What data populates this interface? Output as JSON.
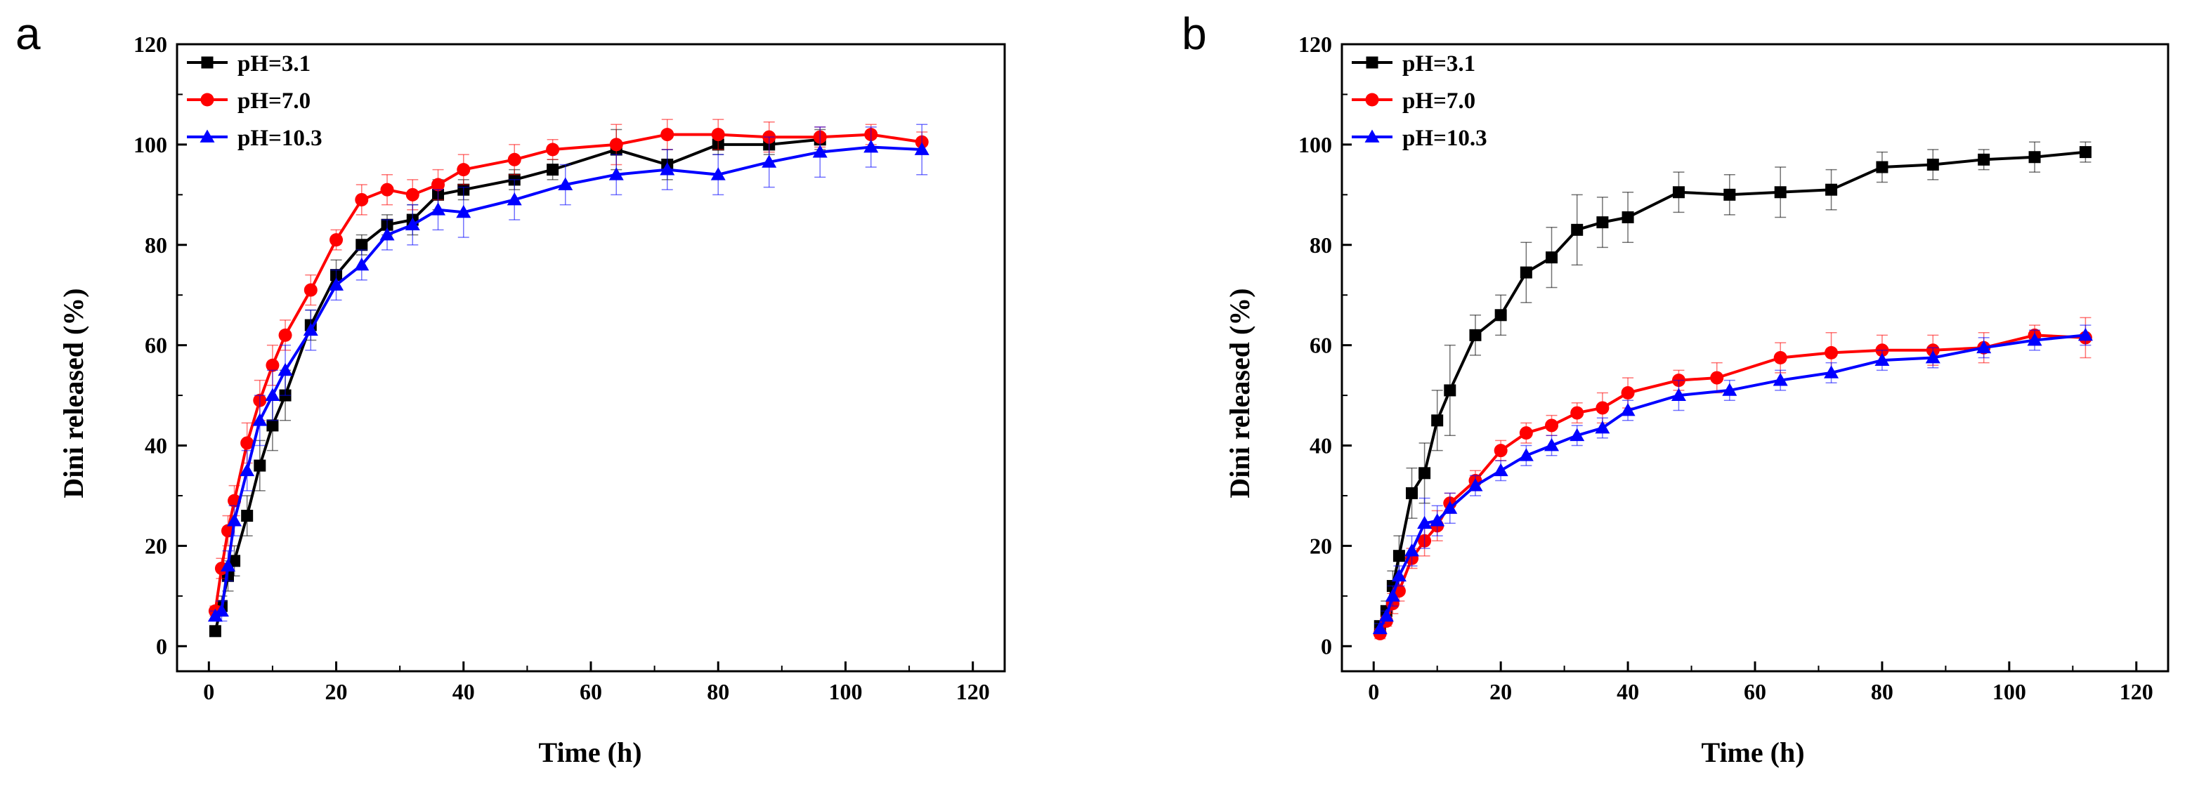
{
  "chart_data": [
    {
      "type": "line",
      "panel_label": "a",
      "xlabel": "Time (h)",
      "ylabel": "Dini  released (%)",
      "xlim": [
        -5,
        125
      ],
      "ylim": [
        -5,
        120
      ],
      "xticks": [
        0,
        20,
        40,
        60,
        80,
        100,
        120
      ],
      "yticks": [
        0,
        20,
        40,
        60,
        80,
        100,
        120
      ],
      "legend_position": "top-left",
      "series": [
        {
          "name": "pH=3.1",
          "color": "#000000",
          "marker": "square",
          "x": [
            1,
            2,
            3,
            4,
            6,
            8,
            10,
            12,
            16,
            20,
            24,
            28,
            32,
            36,
            40,
            48,
            54,
            64,
            72,
            80,
            88,
            96
          ],
          "y": [
            3,
            8,
            14,
            17,
            26,
            36,
            44,
            50,
            64,
            74,
            80,
            84,
            85,
            90,
            91,
            93,
            95,
            99,
            96,
            100,
            100,
            101
          ],
          "err": [
            1,
            2,
            3,
            3,
            4,
            5,
            5,
            5,
            3,
            3,
            2,
            2,
            3,
            3,
            2,
            2,
            2,
            4,
            3,
            2,
            2,
            2
          ]
        },
        {
          "name": "pH=7.0",
          "color": "#ff0000",
          "marker": "circle",
          "x": [
            1,
            2,
            3,
            4,
            6,
            8,
            10,
            12,
            16,
            20,
            24,
            28,
            32,
            36,
            40,
            48,
            54,
            64,
            72,
            80,
            88,
            96,
            104,
            112
          ],
          "y": [
            7,
            15.5,
            23,
            29,
            40.5,
            49,
            56,
            62,
            71,
            81,
            89,
            91,
            90,
            92,
            95,
            97,
            99,
            100,
            102,
            102,
            101.5,
            101.5,
            102,
            100.5
          ],
          "err": [
            1,
            2,
            3,
            3,
            4,
            4,
            4,
            3,
            3,
            2,
            3,
            3,
            3,
            3,
            3,
            3,
            2,
            4,
            3,
            3,
            3,
            2,
            2,
            2
          ]
        },
        {
          "name": "pH=10.3",
          "color": "#0000ff",
          "marker": "triangle",
          "x": [
            1,
            2,
            3,
            4,
            6,
            8,
            10,
            12,
            16,
            20,
            24,
            28,
            32,
            36,
            40,
            48,
            56,
            64,
            72,
            80,
            88,
            96,
            104,
            112
          ],
          "y": [
            6,
            7,
            16,
            25,
            35,
            45,
            50,
            55,
            63,
            72,
            76,
            82,
            84,
            87,
            86.5,
            89,
            92,
            94,
            95,
            94,
            96.5,
            98.5,
            99.5,
            99
          ],
          "err": [
            1,
            2,
            3,
            3,
            4,
            5,
            5,
            5,
            4,
            3,
            3,
            3,
            4,
            4,
            5,
            4,
            4,
            4,
            4,
            4,
            5,
            5,
            4,
            5
          ]
        }
      ]
    },
    {
      "type": "line",
      "panel_label": "b",
      "xlabel": "Time (h)",
      "ylabel": "Dini  released (%)",
      "xlim": [
        -5,
        125
      ],
      "ylim": [
        -5,
        120
      ],
      "xticks": [
        0,
        20,
        40,
        60,
        80,
        100,
        120
      ],
      "yticks": [
        0,
        20,
        40,
        60,
        80,
        100,
        120
      ],
      "legend_position": "top-left",
      "series": [
        {
          "name": "pH=3.1",
          "color": "#000000",
          "marker": "square",
          "x": [
            1,
            2,
            3,
            4,
            6,
            8,
            10,
            12,
            16,
            20,
            24,
            28,
            32,
            36,
            40,
            48,
            56,
            64,
            72,
            80,
            88,
            96,
            104,
            112
          ],
          "y": [
            4,
            7,
            12,
            18,
            30.5,
            34.5,
            45,
            51,
            62,
            66,
            74.5,
            77.5,
            83,
            84.5,
            85.5,
            90.5,
            90,
            90.5,
            91,
            95.5,
            96,
            97,
            97.5,
            98.5
          ],
          "err": [
            1,
            2,
            3,
            4,
            5,
            6,
            6,
            9,
            4,
            4,
            6,
            6,
            7,
            5,
            5,
            4,
            4,
            5,
            4,
            3,
            3,
            2,
            3,
            2
          ]
        },
        {
          "name": "pH=7.0",
          "color": "#ff0000",
          "marker": "circle",
          "x": [
            1,
            2,
            3,
            4,
            6,
            8,
            10,
            12,
            16,
            20,
            24,
            28,
            32,
            36,
            40,
            48,
            54,
            64,
            72,
            80,
            88,
            96,
            104,
            112
          ],
          "y": [
            2.5,
            5,
            8.5,
            11,
            17.5,
            21,
            24,
            28.5,
            33,
            39,
            42.5,
            44,
            46.5,
            47.5,
            50.5,
            53,
            53.5,
            57.5,
            58.5,
            59,
            59,
            59.5,
            62,
            61.5
          ],
          "err": [
            1,
            1,
            2,
            2,
            2,
            3,
            3,
            2,
            2,
            2,
            2,
            2,
            2,
            3,
            3,
            2,
            3,
            3,
            4,
            3,
            3,
            3,
            2,
            4
          ]
        },
        {
          "name": "pH=10.3",
          "color": "#0000ff",
          "marker": "triangle",
          "x": [
            1,
            2,
            3,
            4,
            6,
            8,
            10,
            12,
            16,
            20,
            24,
            28,
            32,
            36,
            40,
            48,
            56,
            64,
            72,
            80,
            88,
            96,
            104,
            112
          ],
          "y": [
            3.5,
            6,
            10,
            14,
            19,
            24.5,
            25,
            27.5,
            32,
            35,
            38,
            40,
            42,
            43.5,
            47,
            50,
            51,
            53,
            54.5,
            57,
            57.5,
            59.5,
            61,
            62
          ],
          "err": [
            1,
            1,
            2,
            2,
            3,
            5,
            3,
            3,
            2,
            2,
            2,
            2,
            2,
            2,
            2,
            3,
            2,
            2,
            2,
            2,
            2,
            2,
            2,
            2
          ]
        }
      ]
    }
  ]
}
